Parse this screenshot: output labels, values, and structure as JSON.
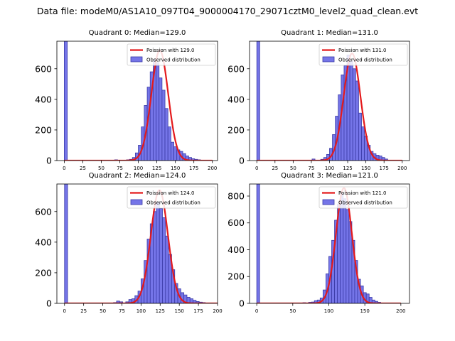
{
  "suptitle": "Data file: modeM0/AS1A10_097T04_9000004170_29071cztM0_level2_quad_clean.evt",
  "colors": {
    "bar_fill": "#7575e8",
    "bar_edge": "#3a3aa6",
    "line": "#e41a1c",
    "axis": "#000000"
  },
  "legend_labels": {
    "observed": "Observed distribution"
  },
  "chart_data": [
    {
      "type": "bar",
      "title": "Quadrant 0: Median=129.0",
      "median": 129.0,
      "poisson_label": "Poission with 129.0",
      "xlim": [
        -10,
        207
      ],
      "ylim": [
        0,
        780
      ],
      "xticks": [
        0,
        25,
        50,
        75,
        100,
        125,
        150,
        175,
        200
      ],
      "yticks": [
        0,
        200,
        400,
        600
      ],
      "bin_width": 4,
      "bins": [
        {
          "x": 0,
          "y": 780
        },
        {
          "x": 68,
          "y": 5
        },
        {
          "x": 84,
          "y": 5
        },
        {
          "x": 88,
          "y": 8
        },
        {
          "x": 92,
          "y": 20
        },
        {
          "x": 96,
          "y": 50
        },
        {
          "x": 100,
          "y": 100
        },
        {
          "x": 104,
          "y": 220
        },
        {
          "x": 108,
          "y": 360
        },
        {
          "x": 112,
          "y": 480
        },
        {
          "x": 116,
          "y": 580
        },
        {
          "x": 120,
          "y": 660
        },
        {
          "x": 124,
          "y": 640
        },
        {
          "x": 128,
          "y": 540
        },
        {
          "x": 132,
          "y": 460
        },
        {
          "x": 136,
          "y": 340
        },
        {
          "x": 140,
          "y": 220
        },
        {
          "x": 144,
          "y": 120
        },
        {
          "x": 148,
          "y": 90
        },
        {
          "x": 152,
          "y": 70
        },
        {
          "x": 156,
          "y": 60
        },
        {
          "x": 160,
          "y": 45
        },
        {
          "x": 164,
          "y": 30
        },
        {
          "x": 168,
          "y": 20
        },
        {
          "x": 172,
          "y": 12
        },
        {
          "x": 176,
          "y": 8
        },
        {
          "x": 180,
          "y": 5
        }
      ],
      "poisson_peak": 720,
      "poisson_range": [
        0,
        200
      ]
    },
    {
      "type": "bar",
      "title": "Quadrant 1: Median=131.0",
      "median": 131.0,
      "poisson_label": "Poission with 131.0",
      "xlim": [
        -10,
        210
      ],
      "ylim": [
        0,
        780
      ],
      "xticks": [
        0,
        25,
        50,
        75,
        100,
        125,
        150,
        175,
        200
      ],
      "yticks": [
        0,
        200,
        400,
        600
      ],
      "bin_width": 4,
      "bins": [
        {
          "x": 0,
          "y": 780
        },
        {
          "x": 76,
          "y": 10
        },
        {
          "x": 88,
          "y": 8
        },
        {
          "x": 92,
          "y": 20
        },
        {
          "x": 96,
          "y": 40
        },
        {
          "x": 100,
          "y": 80
        },
        {
          "x": 104,
          "y": 170
        },
        {
          "x": 108,
          "y": 290
        },
        {
          "x": 112,
          "y": 430
        },
        {
          "x": 116,
          "y": 560
        },
        {
          "x": 120,
          "y": 620
        },
        {
          "x": 124,
          "y": 690
        },
        {
          "x": 128,
          "y": 650
        },
        {
          "x": 132,
          "y": 600
        },
        {
          "x": 136,
          "y": 520
        },
        {
          "x": 140,
          "y": 310
        },
        {
          "x": 144,
          "y": 220
        },
        {
          "x": 148,
          "y": 160
        },
        {
          "x": 152,
          "y": 100
        },
        {
          "x": 156,
          "y": 60
        },
        {
          "x": 160,
          "y": 45
        },
        {
          "x": 164,
          "y": 35
        },
        {
          "x": 168,
          "y": 30
        },
        {
          "x": 172,
          "y": 20
        },
        {
          "x": 176,
          "y": 10
        }
      ],
      "poisson_peak": 700,
      "poisson_range": [
        0,
        200
      ]
    },
    {
      "type": "bar",
      "title": "Quadrant 2: Median=124.0",
      "median": 124.0,
      "poisson_label": "Poission with 124.0",
      "xlim": [
        -10,
        200
      ],
      "ylim": [
        0,
        780
      ],
      "xticks": [
        0,
        25,
        50,
        75,
        100,
        125,
        150,
        175,
        200
      ],
      "yticks": [
        0,
        200,
        400,
        600
      ],
      "bin_width": 4,
      "bins": [
        {
          "x": 0,
          "y": 780
        },
        {
          "x": 64,
          "y": 5
        },
        {
          "x": 68,
          "y": 15
        },
        {
          "x": 72,
          "y": 10
        },
        {
          "x": 80,
          "y": 10
        },
        {
          "x": 84,
          "y": 25
        },
        {
          "x": 88,
          "y": 30
        },
        {
          "x": 92,
          "y": 50
        },
        {
          "x": 96,
          "y": 80
        },
        {
          "x": 100,
          "y": 160
        },
        {
          "x": 104,
          "y": 280
        },
        {
          "x": 108,
          "y": 420
        },
        {
          "x": 112,
          "y": 520
        },
        {
          "x": 116,
          "y": 600
        },
        {
          "x": 120,
          "y": 660
        },
        {
          "x": 124,
          "y": 620
        },
        {
          "x": 128,
          "y": 560
        },
        {
          "x": 132,
          "y": 440
        },
        {
          "x": 136,
          "y": 320
        },
        {
          "x": 140,
          "y": 220
        },
        {
          "x": 144,
          "y": 130
        },
        {
          "x": 148,
          "y": 95
        },
        {
          "x": 152,
          "y": 70
        },
        {
          "x": 156,
          "y": 55
        },
        {
          "x": 160,
          "y": 40
        },
        {
          "x": 164,
          "y": 30
        },
        {
          "x": 168,
          "y": 20
        },
        {
          "x": 172,
          "y": 12
        },
        {
          "x": 176,
          "y": 8
        },
        {
          "x": 180,
          "y": 5
        }
      ],
      "poisson_peak": 740,
      "poisson_range": [
        0,
        200
      ]
    },
    {
      "type": "bar",
      "title": "Quadrant 3: Median=121.0",
      "median": 121.0,
      "poisson_label": "Poission with 121.0",
      "xlim": [
        -10,
        212
      ],
      "ylim": [
        0,
        890
      ],
      "xticks": [
        0,
        50,
        100,
        150,
        200
      ],
      "yticks": [
        0,
        200,
        400,
        600,
        800
      ],
      "bin_width": 4,
      "bins": [
        {
          "x": 0,
          "y": 890
        },
        {
          "x": 64,
          "y": 5
        },
        {
          "x": 72,
          "y": 8
        },
        {
          "x": 76,
          "y": 10
        },
        {
          "x": 80,
          "y": 20
        },
        {
          "x": 84,
          "y": 25
        },
        {
          "x": 88,
          "y": 40
        },
        {
          "x": 92,
          "y": 100
        },
        {
          "x": 96,
          "y": 220
        },
        {
          "x": 100,
          "y": 350
        },
        {
          "x": 104,
          "y": 470
        },
        {
          "x": 108,
          "y": 620
        },
        {
          "x": 112,
          "y": 740
        },
        {
          "x": 116,
          "y": 820
        },
        {
          "x": 120,
          "y": 780
        },
        {
          "x": 124,
          "y": 700
        },
        {
          "x": 128,
          "y": 610
        },
        {
          "x": 132,
          "y": 470
        },
        {
          "x": 136,
          "y": 320
        },
        {
          "x": 140,
          "y": 180
        },
        {
          "x": 144,
          "y": 130
        },
        {
          "x": 148,
          "y": 80
        },
        {
          "x": 152,
          "y": 70
        },
        {
          "x": 156,
          "y": 45
        },
        {
          "x": 160,
          "y": 25
        },
        {
          "x": 164,
          "y": 15
        },
        {
          "x": 168,
          "y": 8
        }
      ],
      "poisson_peak": 860,
      "poisson_range": [
        0,
        200
      ]
    }
  ]
}
